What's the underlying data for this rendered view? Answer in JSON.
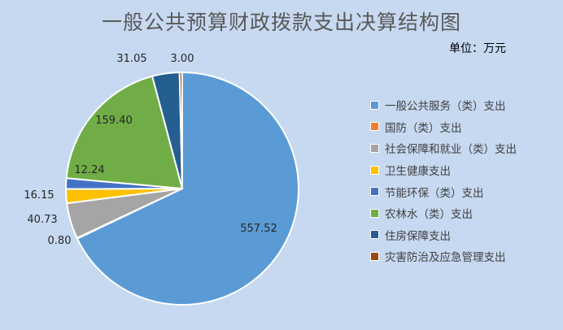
{
  "title": "一般公共预算财政拨款支出决算结构图",
  "unit": "单位：万元",
  "chart_data": {
    "type": "pie",
    "title": "一般公共预算财政拨款支出决算结构图",
    "unit": "单位：万元",
    "legend_position": "right",
    "slices": [
      {
        "label": "一般公共服务（类）支出",
        "value": 557.52,
        "value_label": "557.52",
        "color": "#5b9bd5"
      },
      {
        "label": "国防（类）支出",
        "value": 0.8,
        "value_label": "0.80",
        "color": "#ed7d31"
      },
      {
        "label": "社会保障和就业（类）支出",
        "value": 40.73,
        "value_label": "40.73",
        "color": "#a5a5a5"
      },
      {
        "label": "卫生健康支出",
        "value": 16.15,
        "value_label": "16.15",
        "color": "#ffc000"
      },
      {
        "label": "节能环保（类）支出",
        "value": 12.24,
        "value_label": "12.24",
        "color": "#4472c4"
      },
      {
        "label": "农林水（类）支出",
        "value": 159.4,
        "value_label": "159.40",
        "color": "#70ad47"
      },
      {
        "label": "住房保障支出",
        "value": 31.05,
        "value_label": "31.05",
        "color": "#255e91"
      },
      {
        "label": "灾害防治及应急管理支出",
        "value": 3.0,
        "value_label": "3.00",
        "color": "#9e480e"
      }
    ]
  }
}
